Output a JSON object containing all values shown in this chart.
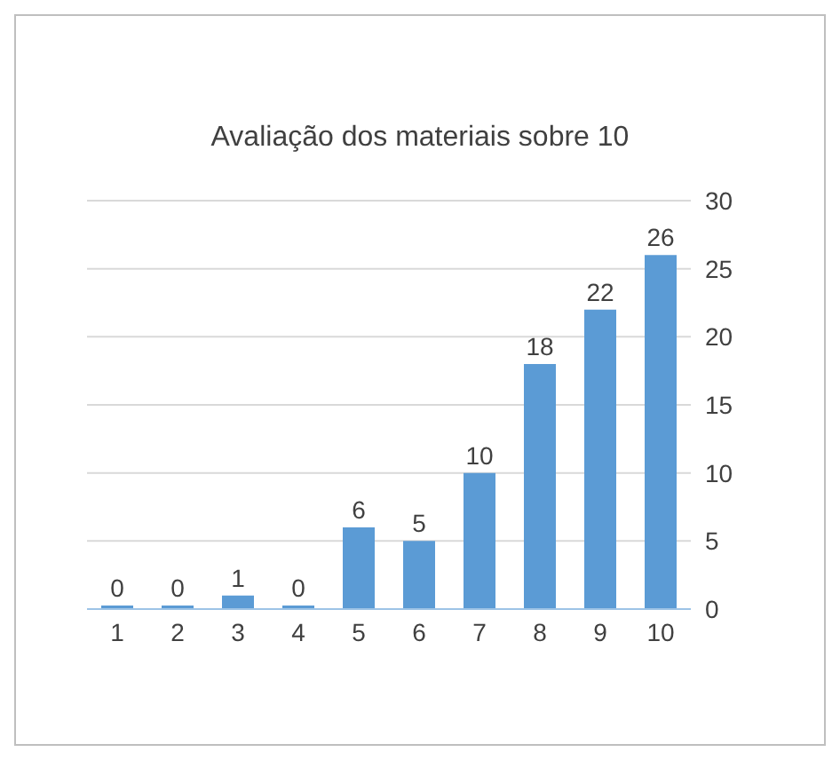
{
  "chart_data": {
    "type": "bar",
    "title": "Avaliação dos materiais sobre 10",
    "categories": [
      "1",
      "2",
      "3",
      "4",
      "5",
      "6",
      "7",
      "8",
      "9",
      "10"
    ],
    "values": [
      0,
      0,
      1,
      0,
      6,
      5,
      10,
      18,
      22,
      26
    ],
    "color": "#5b9bd5",
    "ylim": [
      0,
      30
    ],
    "yticks": [
      0,
      5,
      10,
      15,
      20,
      25,
      30
    ],
    "grid": "y",
    "data_labels": true
  }
}
